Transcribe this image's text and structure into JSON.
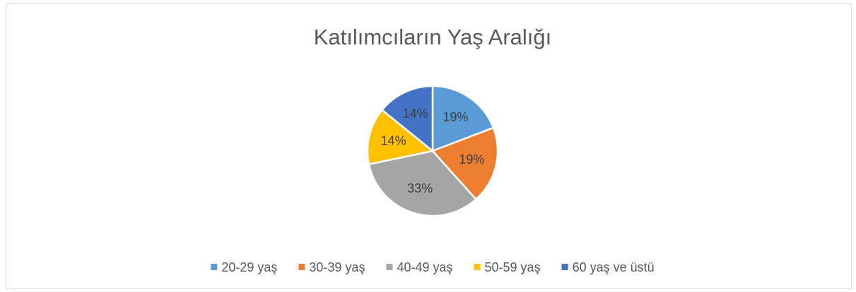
{
  "chart_data": {
    "type": "pie",
    "title": "Katılımcıların Yaş Aralığı",
    "categories": [
      "20-29 yaş",
      "30-39 yaş",
      "40-49 yaş",
      "50-59 yaş",
      "60 yaş ve üstü"
    ],
    "values": [
      19,
      19,
      33,
      14,
      14
    ],
    "value_labels": [
      "19%",
      "19%",
      "33%",
      "14%",
      "14%"
    ],
    "colors": [
      "#5b9bd5",
      "#ed7d31",
      "#a5a5a5",
      "#ffc000",
      "#4472c4"
    ],
    "legend": "bottom"
  }
}
